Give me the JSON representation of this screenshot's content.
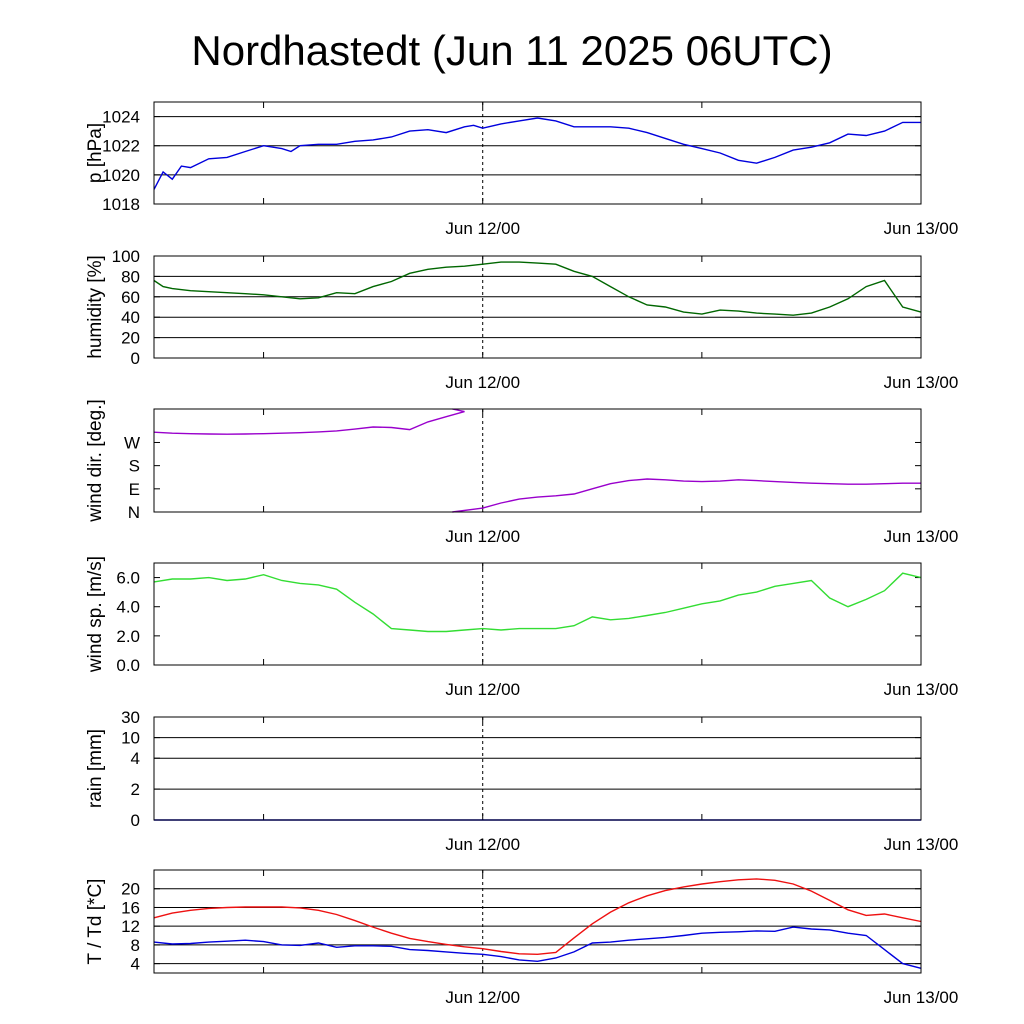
{
  "title": "Nordhastedt (Jun 11 2025 06UTC)",
  "x_ticks": [
    {
      "hour": 18,
      "label": "Jun 12/00"
    },
    {
      "hour": 42,
      "label": "Jun 13/00"
    }
  ],
  "chart_data": [
    {
      "type": "line",
      "ylabel": "p [hPa]",
      "ylim": [
        1018,
        1025
      ],
      "yticks": [
        1018,
        1020,
        1022,
        1024
      ],
      "ytick_labels": [
        "1018",
        "1020",
        "1022",
        "1024"
      ],
      "grid": true,
      "x": [
        0,
        0.5,
        1,
        1.5,
        2,
        3,
        4,
        5,
        6,
        7,
        7.5,
        8,
        9,
        10,
        11,
        12,
        13,
        14,
        15,
        16,
        17,
        17.5,
        18,
        19,
        20,
        21,
        22,
        23,
        24,
        25,
        26,
        27,
        28,
        29,
        30,
        31,
        32,
        33,
        34,
        35,
        36,
        37,
        38,
        39,
        40,
        41,
        42
      ],
      "series": [
        {
          "color": "#0000dd",
          "values": [
            1019.0,
            1020.2,
            1019.7,
            1020.6,
            1020.5,
            1021.1,
            1021.2,
            1021.6,
            1022.0,
            1021.8,
            1021.6,
            1022.0,
            1022.1,
            1022.1,
            1022.3,
            1022.4,
            1022.6,
            1023.0,
            1023.1,
            1022.9,
            1023.3,
            1023.4,
            1023.2,
            1023.5,
            1023.7,
            1023.9,
            1023.7,
            1023.3,
            1023.3,
            1023.3,
            1023.2,
            1022.9,
            1022.5,
            1022.1,
            1021.8,
            1021.5,
            1021.0,
            1020.8,
            1021.2,
            1021.7,
            1021.9,
            1022.2,
            1022.8,
            1022.7,
            1023.0,
            1023.6,
            1023.6
          ]
        }
      ]
    },
    {
      "type": "line",
      "ylabel": "humidity [%]",
      "ylim": [
        0,
        100
      ],
      "yticks": [
        0,
        20,
        40,
        60,
        80,
        100
      ],
      "ytick_labels": [
        "0",
        "20",
        "40",
        "60",
        "80",
        "100"
      ],
      "grid": true,
      "x": [
        0,
        0.5,
        1,
        2,
        3,
        4,
        5,
        6,
        7,
        8,
        9,
        10,
        11,
        12,
        13,
        14,
        15,
        16,
        17,
        18,
        19,
        20,
        21,
        22,
        23,
        24,
        25,
        26,
        27,
        28,
        29,
        30,
        31,
        32,
        33,
        34,
        35,
        36,
        37,
        38,
        39,
        40,
        41,
        42
      ],
      "series": [
        {
          "color": "#006600",
          "values": [
            76,
            70,
            68,
            66,
            65,
            64,
            63,
            62,
            60,
            58,
            59,
            64,
            63,
            70,
            75,
            83,
            87,
            89,
            90,
            92,
            94,
            94,
            93,
            92,
            85,
            80,
            70,
            60,
            52,
            50,
            45,
            43,
            47,
            46,
            44,
            43,
            42,
            44,
            50,
            58,
            70,
            76,
            50,
            45
          ]
        }
      ]
    },
    {
      "type": "line",
      "ylabel": "wind dir. [deg.]",
      "ylim": [
        0,
        400
      ],
      "yticks": [
        0,
        90,
        180,
        270
      ],
      "ytick_labels": [
        "N",
        "E",
        "S",
        "W"
      ],
      "grid": false,
      "x": [
        0,
        1,
        2,
        3,
        4,
        5,
        6,
        7,
        8,
        9,
        10,
        11,
        12,
        13,
        14,
        15,
        16,
        17,
        18,
        19,
        20,
        21,
        22,
        23,
        24,
        25,
        26,
        27,
        28,
        29,
        30,
        31,
        32,
        33,
        34,
        35,
        36,
        37,
        38,
        39,
        40,
        41,
        42
      ],
      "series": [
        {
          "color": "#9900cc",
          "values": [
            310,
            306,
            304,
            303,
            302,
            303,
            304,
            306,
            308,
            311,
            315,
            322,
            330,
            328,
            320,
            350,
            370,
            390,
            15,
            35,
            50,
            58,
            63,
            70,
            90,
            110,
            122,
            128,
            125,
            120,
            118,
            120,
            125,
            122,
            118,
            115,
            112,
            110,
            108,
            108,
            110,
            112,
            112
          ]
        }
      ]
    },
    {
      "type": "line",
      "ylabel": "wind sp. [m/s]",
      "ylim": [
        0,
        7
      ],
      "yticks": [
        0,
        2,
        4,
        6
      ],
      "ytick_labels": [
        "0.0",
        "2.0",
        "4.0",
        "6.0"
      ],
      "grid": false,
      "x": [
        0,
        1,
        2,
        3,
        4,
        5,
        6,
        7,
        8,
        9,
        10,
        11,
        12,
        13,
        14,
        15,
        16,
        17,
        18,
        19,
        20,
        21,
        22,
        23,
        24,
        25,
        26,
        27,
        28,
        29,
        30,
        31,
        32,
        33,
        34,
        35,
        36,
        37,
        38,
        39,
        40,
        41,
        42
      ],
      "series": [
        {
          "color": "#33dd33",
          "values": [
            5.7,
            5.9,
            5.9,
            6.0,
            5.8,
            5.9,
            6.2,
            5.8,
            5.6,
            5.5,
            5.2,
            4.3,
            3.5,
            2.5,
            2.4,
            2.3,
            2.3,
            2.4,
            2.5,
            2.4,
            2.5,
            2.5,
            2.5,
            2.7,
            3.3,
            3.1,
            3.2,
            3.4,
            3.6,
            3.9,
            4.2,
            4.4,
            4.8,
            5.0,
            5.4,
            5.6,
            5.8,
            4.6,
            4.0,
            4.5,
            5.1,
            6.3,
            6.0
          ]
        }
      ]
    },
    {
      "type": "line",
      "ylabel": "rain [mm]",
      "ylim": [
        0,
        30
      ],
      "yticks": [
        0,
        2,
        4,
        10,
        30
      ],
      "ytick_labels": [
        "0",
        "2",
        "4",
        "10",
        "30"
      ],
      "grid": true,
      "x": [
        0,
        42
      ],
      "series": [
        {
          "color": "#0000dd",
          "values": [
            0,
            0
          ]
        }
      ]
    },
    {
      "type": "line",
      "ylabel": "T / Td [*C]",
      "ylim": [
        2,
        24
      ],
      "yticks": [
        4,
        8,
        12,
        16,
        20
      ],
      "ytick_labels": [
        "4",
        "8",
        "12",
        "16",
        "20"
      ],
      "grid": true,
      "x": [
        0,
        1,
        2,
        3,
        4,
        5,
        6,
        7,
        8,
        9,
        10,
        11,
        12,
        13,
        14,
        15,
        16,
        17,
        18,
        19,
        20,
        21,
        22,
        23,
        24,
        25,
        26,
        27,
        28,
        29,
        30,
        31,
        32,
        33,
        34,
        35,
        36,
        37,
        38,
        39,
        40,
        41,
        42
      ],
      "series": [
        {
          "color": "#ee1111",
          "values": [
            13.8,
            14.8,
            15.4,
            15.8,
            16.0,
            16.1,
            16.1,
            16.1,
            15.9,
            15.4,
            14.5,
            13.2,
            11.8,
            10.5,
            9.4,
            8.7,
            8.1,
            7.6,
            7.2,
            6.6,
            6.1,
            6.0,
            6.4,
            9.5,
            12.5,
            15.0,
            17.0,
            18.5,
            19.6,
            20.4,
            21.0,
            21.5,
            21.9,
            22.1,
            21.8,
            21.0,
            19.5,
            17.5,
            15.5,
            14.3,
            14.6,
            13.8,
            13.0
          ]
        },
        {
          "color": "#0000dd",
          "values": [
            8.6,
            8.2,
            8.3,
            8.6,
            8.8,
            9.0,
            8.7,
            8.0,
            7.9,
            8.4,
            7.5,
            7.8,
            7.8,
            7.7,
            7.0,
            6.8,
            6.5,
            6.2,
            6.0,
            5.5,
            4.8,
            4.5,
            5.2,
            6.5,
            8.4,
            8.6,
            9.0,
            9.3,
            9.6,
            10.0,
            10.5,
            10.7,
            10.8,
            11.0,
            10.9,
            11.8,
            11.4,
            11.2,
            10.5,
            10.0,
            7.0,
            4.0,
            3.0
          ]
        }
      ]
    }
  ]
}
